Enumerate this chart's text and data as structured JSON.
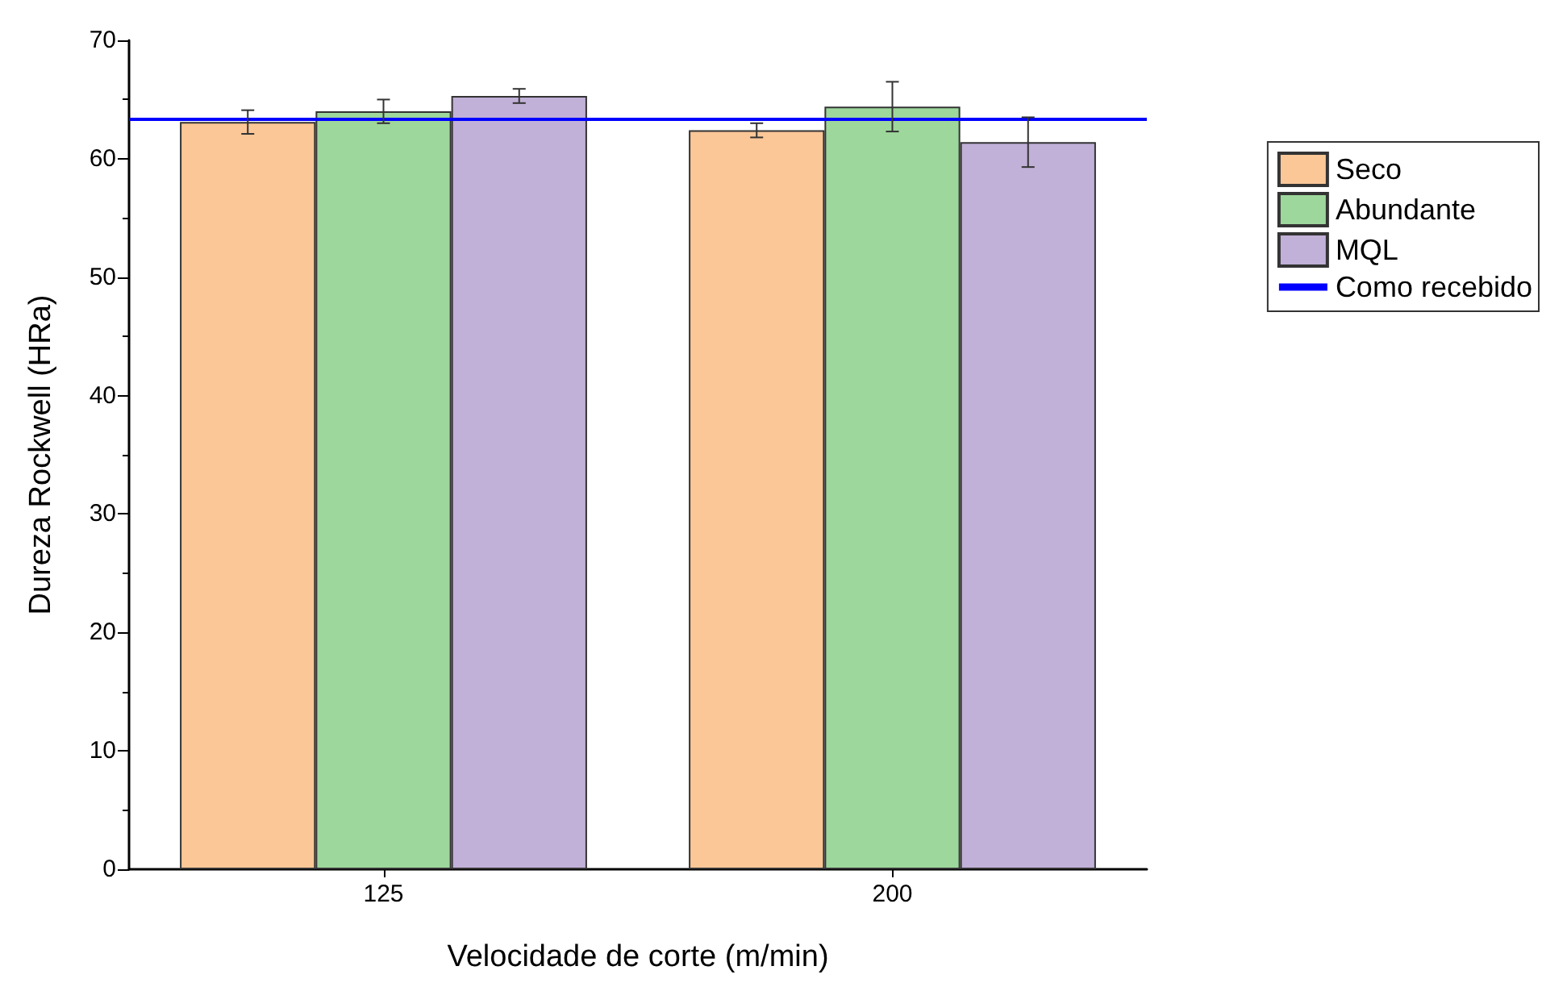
{
  "chart_data": {
    "type": "bar",
    "xlabel": "Velocidade de corte (m/min)",
    "ylabel": "Dureza Rockwell (HRa)",
    "categories": [
      "125",
      "200"
    ],
    "series": [
      {
        "name": "Seco",
        "color": "#fbc797",
        "values": [
          63.1,
          62.4
        ],
        "errors": [
          1.0,
          0.6
        ]
      },
      {
        "name": "Abundante",
        "color": "#9ed79c",
        "values": [
          64.0,
          64.4
        ],
        "errors": [
          1.0,
          2.1
        ]
      },
      {
        "name": "MQL",
        "color": "#c1b0d7",
        "values": [
          65.3,
          61.4
        ],
        "errors": [
          0.6,
          2.1
        ]
      }
    ],
    "ylim": [
      0,
      70
    ],
    "yticks": [
      0,
      10,
      20,
      30,
      40,
      50,
      60,
      70
    ],
    "ref_lines": [
      {
        "axis": "y",
        "value": 63.3,
        "label": "Como recebido",
        "color": "#0000ff",
        "line_style": "solid"
      }
    ],
    "legend": "right",
    "grid": false
  }
}
